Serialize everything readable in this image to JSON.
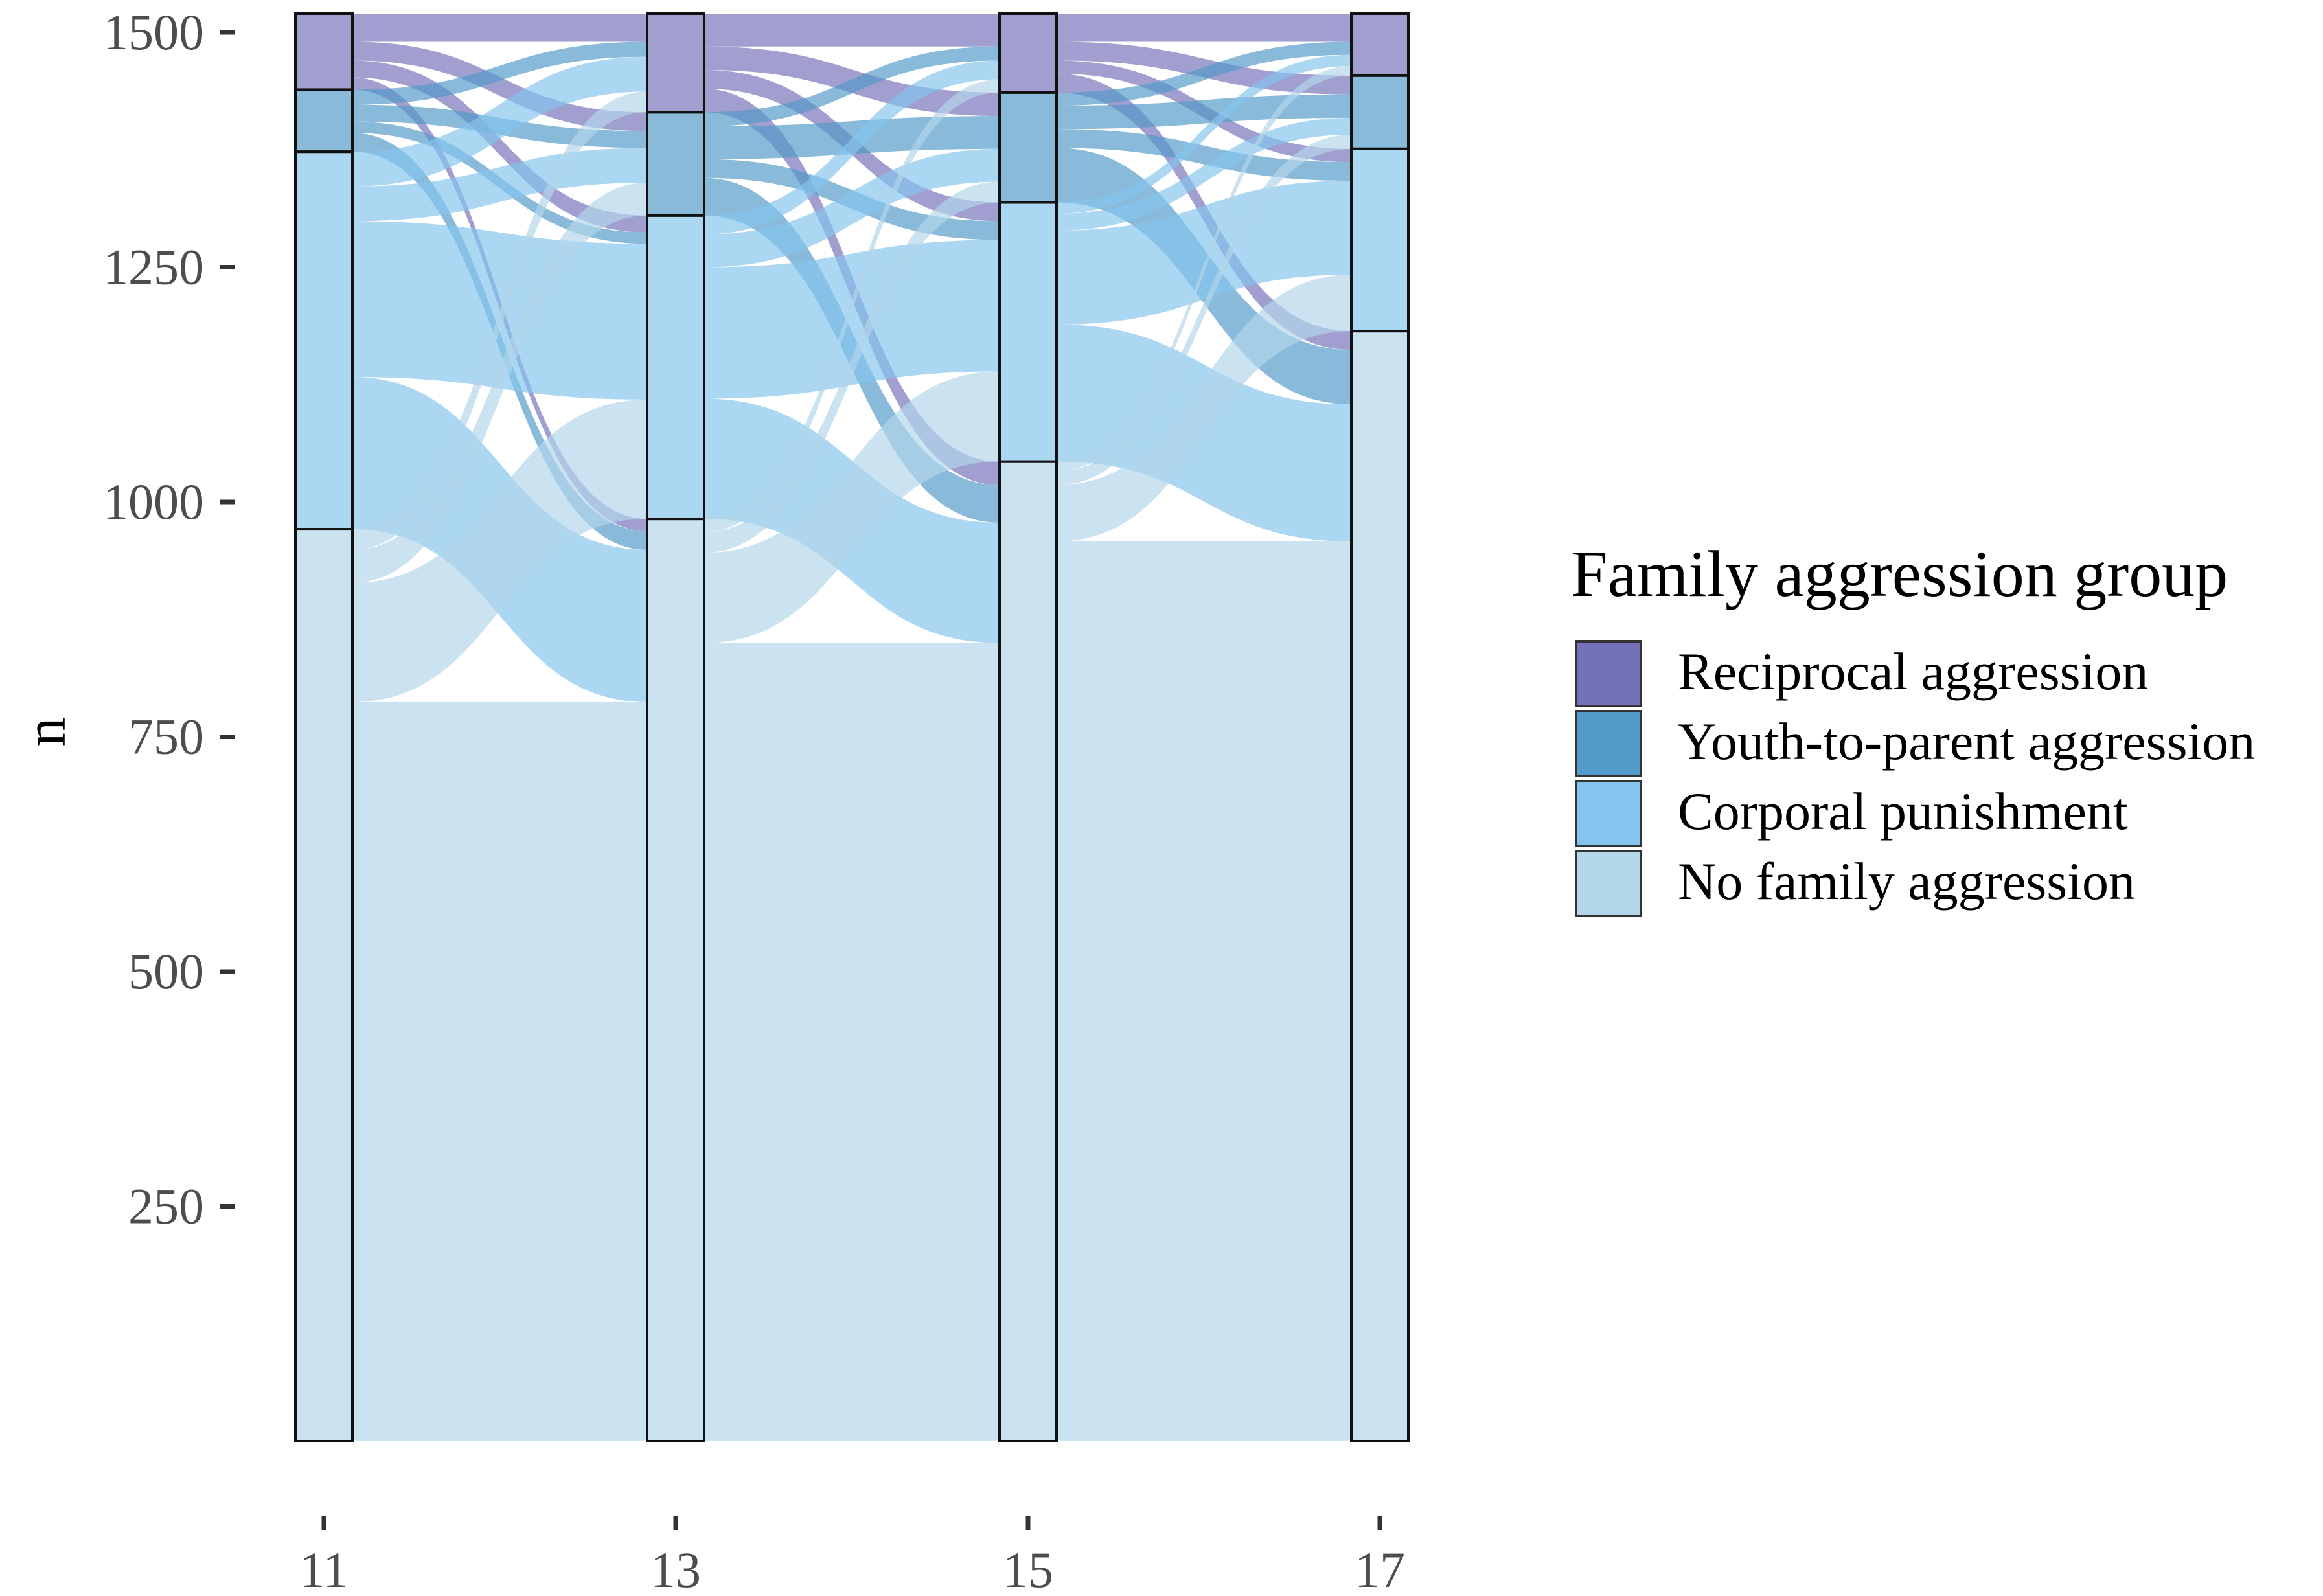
{
  "chart_data": {
    "type": "alluvial",
    "title": "",
    "xlabel": "",
    "ylabel": "n",
    "ylim": [
      0,
      1520
    ],
    "y_ticks": [
      250,
      500,
      750,
      1000,
      1250,
      1500
    ],
    "x": [
      11,
      13,
      15,
      17
    ],
    "x_tick_labels": [
      "11",
      "13",
      "15",
      "17"
    ],
    "grid": false,
    "legend": {
      "title": "Family aggression group",
      "position": "right"
    },
    "groups": [
      {
        "key": "reciprocal",
        "name": "Reciprocal aggression",
        "color": "#7471b8"
      },
      {
        "key": "youth",
        "name": "Youth-to-parent aggression",
        "color": "#5399c9"
      },
      {
        "key": "corporal",
        "name": "Corporal punishment",
        "color": "#85c4ee"
      },
      {
        "key": "none",
        "name": "No family aggression",
        "color": "#b3d6ea"
      }
    ],
    "stack_order_top_to_bottom": [
      "reciprocal",
      "youth",
      "corporal",
      "none"
    ],
    "counts": [
      {
        "x": 11,
        "reciprocal": 81,
        "youth": 66,
        "corporal": 402,
        "none": 971
      },
      {
        "x": 13,
        "reciprocal": 105,
        "youth": 110,
        "corporal": 323,
        "none": 982
      },
      {
        "x": 15,
        "reciprocal": 84,
        "youth": 117,
        "corporal": 276,
        "none": 1043
      },
      {
        "x": 17,
        "reciprocal": 66,
        "youth": 78,
        "corporal": 194,
        "none": 1182
      }
    ],
    "transitions": [
      {
        "from": 11,
        "to": 13,
        "flows": [
          {
            "source": "reciprocal",
            "target": "reciprocal",
            "value": 30
          },
          {
            "source": "reciprocal",
            "target": "youth",
            "value": 20
          },
          {
            "source": "reciprocal",
            "target": "corporal",
            "value": 18
          },
          {
            "source": "reciprocal",
            "target": "none",
            "value": 13
          },
          {
            "source": "youth",
            "target": "reciprocal",
            "value": 16
          },
          {
            "source": "youth",
            "target": "youth",
            "value": 18
          },
          {
            "source": "youth",
            "target": "corporal",
            "value": 12
          },
          {
            "source": "youth",
            "target": "none",
            "value": 20
          },
          {
            "source": "corporal",
            "target": "reciprocal",
            "value": 37
          },
          {
            "source": "corporal",
            "target": "youth",
            "value": 37
          },
          {
            "source": "corporal",
            "target": "corporal",
            "value": 166
          },
          {
            "source": "corporal",
            "target": "none",
            "value": 162
          },
          {
            "source": "none",
            "target": "reciprocal",
            "value": 22
          },
          {
            "source": "none",
            "target": "youth",
            "value": 35
          },
          {
            "source": "none",
            "target": "corporal",
            "value": 127
          },
          {
            "source": "none",
            "target": "none",
            "value": 787
          }
        ]
      },
      {
        "from": 13,
        "to": 15,
        "flows": [
          {
            "source": "reciprocal",
            "target": "reciprocal",
            "value": 35
          },
          {
            "source": "reciprocal",
            "target": "youth",
            "value": 25
          },
          {
            "source": "reciprocal",
            "target": "corporal",
            "value": 20
          },
          {
            "source": "reciprocal",
            "target": "none",
            "value": 25
          },
          {
            "source": "youth",
            "target": "reciprocal",
            "value": 15
          },
          {
            "source": "youth",
            "target": "youth",
            "value": 35
          },
          {
            "source": "youth",
            "target": "corporal",
            "value": 20
          },
          {
            "source": "youth",
            "target": "none",
            "value": 40
          },
          {
            "source": "corporal",
            "target": "reciprocal",
            "value": 20
          },
          {
            "source": "corporal",
            "target": "youth",
            "value": 35
          },
          {
            "source": "corporal",
            "target": "corporal",
            "value": 140
          },
          {
            "source": "corporal",
            "target": "none",
            "value": 128
          },
          {
            "source": "none",
            "target": "reciprocal",
            "value": 14
          },
          {
            "source": "none",
            "target": "youth",
            "value": 22
          },
          {
            "source": "none",
            "target": "corporal",
            "value": 96
          },
          {
            "source": "none",
            "target": "none",
            "value": 850
          }
        ]
      },
      {
        "from": 15,
        "to": 17,
        "flows": [
          {
            "source": "reciprocal",
            "target": "reciprocal",
            "value": 30
          },
          {
            "source": "reciprocal",
            "target": "youth",
            "value": 20
          },
          {
            "source": "reciprocal",
            "target": "corporal",
            "value": 14
          },
          {
            "source": "reciprocal",
            "target": "none",
            "value": 20
          },
          {
            "source": "youth",
            "target": "reciprocal",
            "value": 14
          },
          {
            "source": "youth",
            "target": "youth",
            "value": 25
          },
          {
            "source": "youth",
            "target": "corporal",
            "value": 20
          },
          {
            "source": "youth",
            "target": "none",
            "value": 58
          },
          {
            "source": "corporal",
            "target": "reciprocal",
            "value": 12
          },
          {
            "source": "corporal",
            "target": "youth",
            "value": 18
          },
          {
            "source": "corporal",
            "target": "corporal",
            "value": 100
          },
          {
            "source": "corporal",
            "target": "none",
            "value": 146
          },
          {
            "source": "none",
            "target": "reciprocal",
            "value": 10
          },
          {
            "source": "none",
            "target": "youth",
            "value": 15
          },
          {
            "source": "none",
            "target": "corporal",
            "value": 60
          },
          {
            "source": "none",
            "target": "none",
            "value": 958
          }
        ]
      }
    ]
  }
}
